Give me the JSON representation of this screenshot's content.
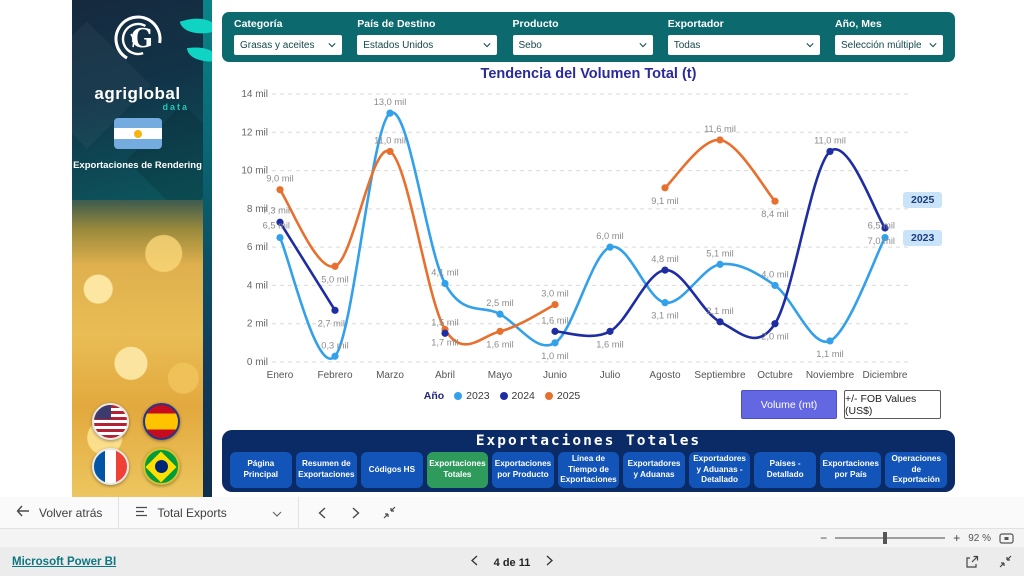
{
  "sidebar": {
    "brand": "agriglobal",
    "brand_sub": "data",
    "subtitle": "Exportaciones de Rendering",
    "flags": [
      "usa",
      "spain",
      "france",
      "brazil"
    ]
  },
  "filters": {
    "items": [
      {
        "label": "Categoría",
        "value": "Grasas y aceites"
      },
      {
        "label": "País de Destino",
        "value": "Estados Unidos"
      },
      {
        "label": "Producto",
        "value": "Sebo"
      },
      {
        "label": "Exportador",
        "value": "Todas"
      },
      {
        "label": "Año, Mes",
        "value": "Selección múltiple"
      }
    ]
  },
  "chart_data": {
    "type": "line",
    "title": "Tendencia del Volumen Total (t)",
    "categories": [
      "Enero",
      "Febrero",
      "Marzo",
      "Abril",
      "Mayo",
      "Junio",
      "Julio",
      "Agosto",
      "Septiembre",
      "Octubre",
      "Noviembre",
      "Diciembre"
    ],
    "ylim": [
      0,
      14
    ],
    "y_ticks": [
      "0 mil",
      "2 mil",
      "4 mil",
      "6 mil",
      "8 mil",
      "10 mil",
      "12 mil",
      "14 mil"
    ],
    "unit": "mil",
    "grid": "dashed-horizontal",
    "legend_title": "Año",
    "legend_position": "bottom-center",
    "series": [
      {
        "name": "2023",
        "color": "#33a0ea",
        "values": [
          6.5,
          0.3,
          13.0,
          4.1,
          2.5,
          1.0,
          6.0,
          3.1,
          5.1,
          4.0,
          1.1,
          6.5
        ]
      },
      {
        "name": "2024",
        "color": "#1f2da3",
        "values": [
          7.3,
          2.7,
          null,
          1.5,
          null,
          1.6,
          1.6,
          4.8,
          2.1,
          2.0,
          11.0,
          7.0
        ]
      },
      {
        "name": "2025",
        "color": "#e8702e",
        "values": [
          9.0,
          5.0,
          11.0,
          1.7,
          1.6,
          3.0,
          null,
          9.1,
          11.6,
          8.4,
          null,
          null
        ]
      }
    ],
    "year_badges": [
      "2025",
      "2023"
    ]
  },
  "measure_buttons": {
    "volume": "Volume (mt)",
    "fob": "+/- FOB Values (US$)"
  },
  "nav": {
    "title": "Exportaciones Totales",
    "tabs": [
      {
        "label": "Página Principal",
        "active": false
      },
      {
        "label": "Resumen de Exportaciones",
        "active": false
      },
      {
        "label": "Códigos HS",
        "active": false
      },
      {
        "label": "Exportaciones Totales",
        "active": true
      },
      {
        "label": "Exportaciones por Producto",
        "active": false
      },
      {
        "label": "Línea de Tiempo de Exportaciones",
        "active": false
      },
      {
        "label": "Exportadores y Aduanas",
        "active": false
      },
      {
        "label": "Exportadores y Aduanas - Detallado",
        "active": false
      },
      {
        "label": "Países - Detallado",
        "active": false
      },
      {
        "label": "Exportaciones por País",
        "active": false
      },
      {
        "label": "Operaciones de Exportación",
        "active": false
      }
    ]
  },
  "toolbar": {
    "back_label": "Volver atrás",
    "page_selector": "Total Exports"
  },
  "footer": {
    "brand_link": "Microsoft Power BI",
    "page_indicator": "4 de 11",
    "zoom_level": "92 %"
  }
}
